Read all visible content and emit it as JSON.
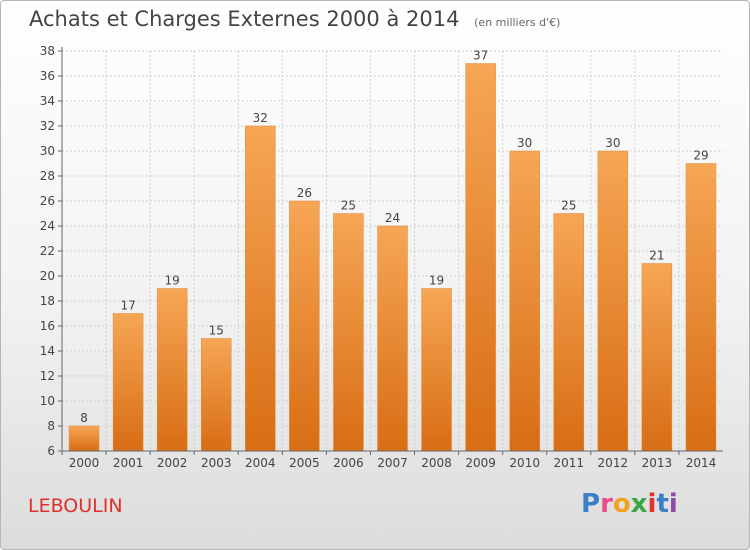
{
  "header": {
    "title": "Achats et Charges Externes 2000 à 2014",
    "unit": "(en milliers d'€)"
  },
  "footer": {
    "place": "LEBOULIN",
    "brand_letters": [
      "P",
      "r",
      "o",
      "x",
      "i",
      "t",
      "i"
    ]
  },
  "colors": {
    "bar_top": "#f6a655",
    "bar_bottom": "#d86d14",
    "axis": "#666666",
    "grid": "#d0d0d0",
    "place_text": "#e0302a"
  },
  "chart_data": {
    "type": "bar",
    "title": "Achats et Charges Externes 2000 à 2014",
    "xlabel": "",
    "ylabel": "",
    "categories": [
      "2000",
      "2001",
      "2002",
      "2003",
      "2004",
      "2005",
      "2006",
      "2007",
      "2008",
      "2009",
      "2010",
      "2011",
      "2012",
      "2013",
      "2014"
    ],
    "values": [
      8,
      17,
      19,
      15,
      32,
      26,
      25,
      24,
      19,
      37,
      30,
      25,
      30,
      21,
      29
    ],
    "ylim": [
      6,
      38
    ],
    "yticks": [
      6,
      8,
      10,
      12,
      14,
      16,
      18,
      20,
      22,
      24,
      26,
      28,
      30,
      32,
      34,
      36,
      38
    ],
    "grid": true,
    "data_labels": true
  }
}
